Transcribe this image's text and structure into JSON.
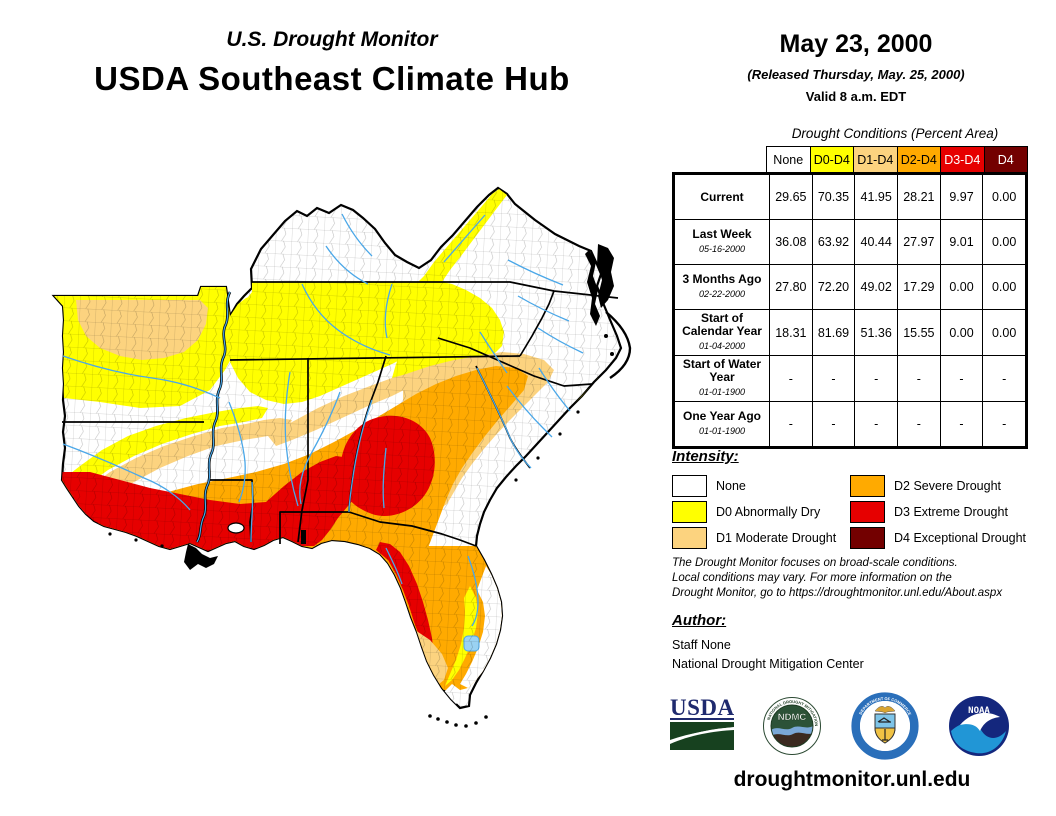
{
  "header": {
    "report_title": "U.S. Drought Monitor",
    "hub_title": "USDA Southeast Climate Hub",
    "date": "May 23, 2000",
    "released": "(Released Thursday, May. 25, 2000)",
    "valid": "Valid 8 a.m. EDT"
  },
  "colors": {
    "none": "#FFFFFF",
    "d0": "#FFFF00",
    "d1": "#FCD37F",
    "d2": "#FFAA00",
    "d3": "#E60000",
    "d4": "#730000",
    "river": "#4AA7E8",
    "lake": "#9AD2F2"
  },
  "table": {
    "title": "Drought Conditions (Percent Area)",
    "columns": [
      {
        "label": "None",
        "bg": "#FFFFFF",
        "fg": "#000000"
      },
      {
        "label": "D0-D4",
        "bg": "#FFFF00",
        "fg": "#000000"
      },
      {
        "label": "D1-D4",
        "bg": "#FCD37F",
        "fg": "#000000"
      },
      {
        "label": "D2-D4",
        "bg": "#FFAA00",
        "fg": "#000000"
      },
      {
        "label": "D3-D4",
        "bg": "#E60000",
        "fg": "#FFFFFF"
      },
      {
        "label": "D4",
        "bg": "#730000",
        "fg": "#FFFFFF"
      }
    ],
    "rows": [
      {
        "label": "Current",
        "date": "",
        "values": [
          "29.65",
          "70.35",
          "41.95",
          "28.21",
          "9.97",
          "0.00"
        ]
      },
      {
        "label": "Last Week",
        "date": "05-16-2000",
        "values": [
          "36.08",
          "63.92",
          "40.44",
          "27.97",
          "9.01",
          "0.00"
        ]
      },
      {
        "label": "3 Months Ago",
        "date": "02-22-2000",
        "values": [
          "27.80",
          "72.20",
          "49.02",
          "17.29",
          "0.00",
          "0.00"
        ]
      },
      {
        "label": "Start of Calendar Year",
        "date": "01-04-2000",
        "values": [
          "18.31",
          "81.69",
          "51.36",
          "15.55",
          "0.00",
          "0.00"
        ]
      },
      {
        "label": "Start of Water Year",
        "date": "01-01-1900",
        "values": [
          "-",
          "-",
          "-",
          "-",
          "-",
          "-"
        ]
      },
      {
        "label": "One Year Ago",
        "date": "01-01-1900",
        "values": [
          "-",
          "-",
          "-",
          "-",
          "-",
          "-"
        ]
      }
    ]
  },
  "legend": {
    "title": "Intensity:",
    "items": [
      {
        "label": "None",
        "color": "#FFFFFF"
      },
      {
        "label": "D0 Abnormally Dry",
        "color": "#FFFF00"
      },
      {
        "label": "D1 Moderate Drought",
        "color": "#FCD37F"
      },
      {
        "label": "D2 Severe Drought",
        "color": "#FFAA00"
      },
      {
        "label": "D3 Extreme Drought",
        "color": "#E60000"
      },
      {
        "label": "D4 Exceptional Drought",
        "color": "#730000"
      }
    ]
  },
  "disclaimer_lines": [
    "The Drought Monitor focuses on broad-scale conditions.",
    "Local conditions may vary. For more information on the",
    "Drought Monitor, go to https://droughtmonitor.unl.edu/About.aspx"
  ],
  "author": {
    "title": "Author:",
    "name": "Staff None",
    "org": "National Drought Mitigation Center"
  },
  "logos": [
    {
      "name": "USDA"
    },
    {
      "name": "NDMC",
      "ring_top": "NATIONAL DROUGHT MITIGATION CENTER",
      "ring_bottom": "UNIVERSITY OF NEBRASKA"
    },
    {
      "name": "DOC",
      "ring_top": "DEPARTMENT OF COMMERCE",
      "ring_bottom": "UNITED STATES OF AMERICA"
    },
    {
      "name": "NOAA"
    }
  ],
  "footer": {
    "url": "droughtmonitor.unl.edu"
  }
}
